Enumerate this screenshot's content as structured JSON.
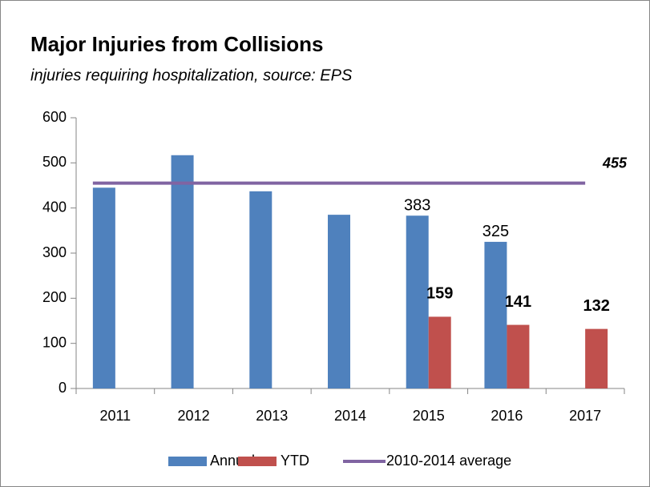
{
  "chart_data": {
    "type": "bar",
    "title": "Major Injuries from Collisions",
    "subtitle": "injuries requiring hospitalization, source: EPS",
    "categories": [
      "2011",
      "2012",
      "2013",
      "2014",
      "2015",
      "2016",
      "2017"
    ],
    "series": [
      {
        "name": "Annual",
        "color": "#4f81bd",
        "values": [
          445,
          517,
          437,
          385,
          383,
          325,
          null
        ],
        "value_labels": [
          null,
          null,
          null,
          null,
          "383",
          "325",
          null
        ]
      },
      {
        "name": "YTD",
        "color": "#c0504d",
        "values": [
          null,
          null,
          null,
          null,
          159,
          141,
          132
        ],
        "value_labels": [
          null,
          null,
          null,
          null,
          "159",
          "141",
          "132"
        ]
      }
    ],
    "reference_line": {
      "name": "2010-2014 average",
      "color": "#8064a2",
      "value": 455
    },
    "ylim": [
      0,
      600
    ],
    "yticks": [
      0,
      100,
      200,
      300,
      400,
      500,
      600
    ],
    "grid": false,
    "legend": "bottom"
  }
}
